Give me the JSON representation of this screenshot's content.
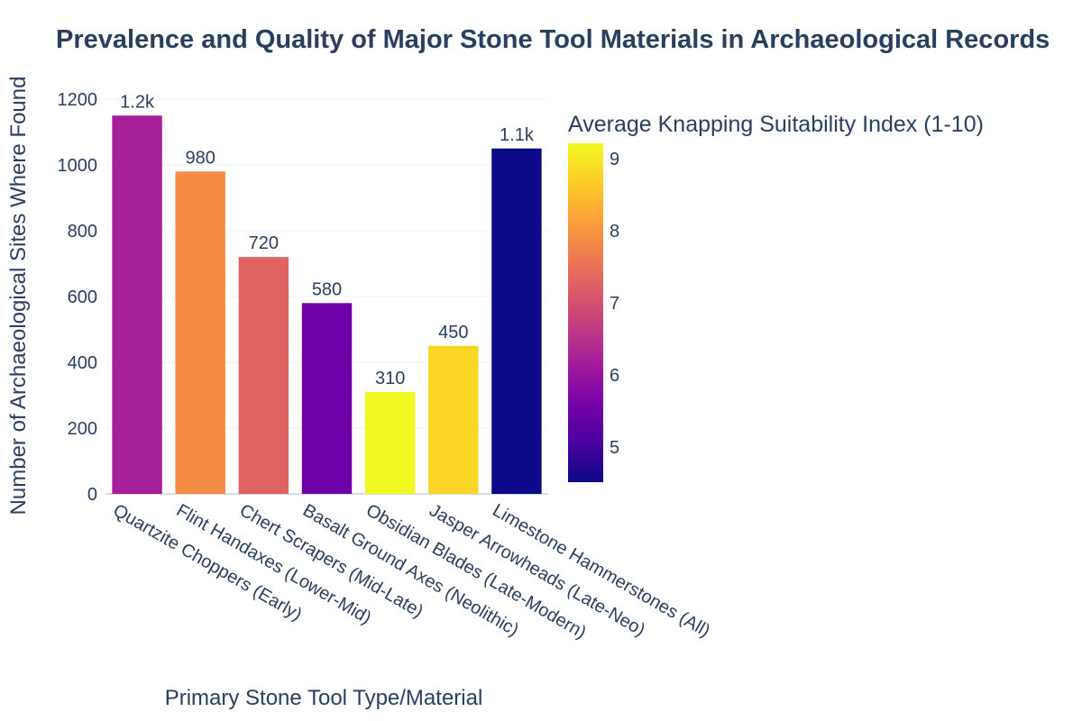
{
  "chart_data": {
    "type": "bar",
    "title": "Prevalence and Quality of Major Stone Tool Materials in Archaeological Records",
    "xlabel": "Primary Stone Tool Type/Material",
    "ylabel": "Number of Archaeological Sites Where Found",
    "categories": [
      "Quartzite Choppers (Early)",
      "Flint Handaxes (Lower-Mid)",
      "Chert Scrapers (Mid-Late)",
      "Basalt Ground Axes (Neolithic)",
      "Obsidian Blades (Late-Modern)",
      "Jasper Arrowheads (Late-Neo)",
      "Limestone Hammerstones (All)"
    ],
    "values": [
      1150,
      980,
      720,
      580,
      310,
      450,
      1050
    ],
    "value_labels": [
      "1.2k",
      "980",
      "720",
      "580",
      "310",
      "450",
      "1.1k"
    ],
    "color_values": [
      6.2,
      7.9,
      7.3,
      5.5,
      9.2,
      8.8,
      4.5
    ],
    "ylim": [
      0,
      1200
    ],
    "yticks": [
      0,
      200,
      400,
      600,
      800,
      1000,
      1200
    ],
    "grid": true,
    "colorbar": {
      "title": "Average Knapping Suitability Index (1-10)",
      "range": [
        4.5,
        9.2
      ],
      "ticks": [
        5,
        6,
        7,
        8,
        9
      ],
      "colorscale": "plasma"
    }
  }
}
